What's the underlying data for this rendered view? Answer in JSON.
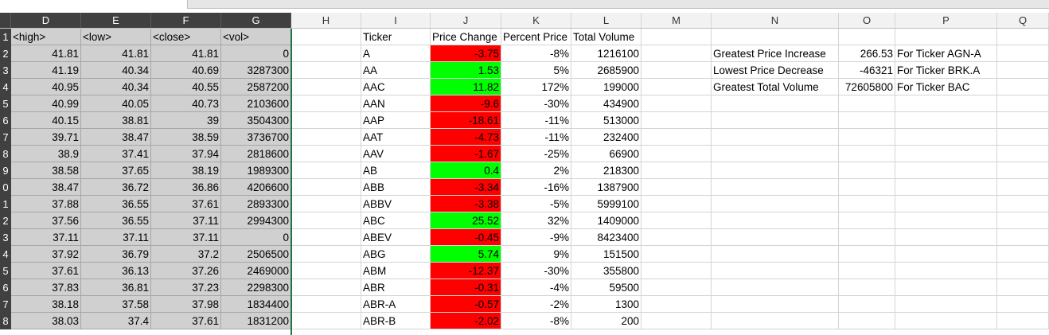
{
  "columns": [
    "D",
    "E",
    "F",
    "G",
    "H",
    "I",
    "J",
    "K",
    "L",
    "M",
    "N",
    "O",
    "P",
    "Q"
  ],
  "row_numbers": [
    "1",
    "2",
    "3",
    "4",
    "5",
    "6",
    "7",
    "8",
    "9",
    "0",
    "1",
    "2",
    "3",
    "4",
    "5",
    "6",
    "7",
    "8"
  ],
  "left_headers": [
    "<high>",
    "<low>",
    "<close>",
    "<vol>"
  ],
  "left_rows": [
    [
      "41.81",
      "41.81",
      "41.81",
      "0"
    ],
    [
      "41.19",
      "40.34",
      "40.69",
      "3287300"
    ],
    [
      "40.95",
      "40.34",
      "40.55",
      "2587200"
    ],
    [
      "40.99",
      "40.05",
      "40.73",
      "2103600"
    ],
    [
      "40.15",
      "38.81",
      "39",
      "3504300"
    ],
    [
      "39.71",
      "38.47",
      "38.59",
      "3736700"
    ],
    [
      "38.9",
      "37.41",
      "37.94",
      "2818600"
    ],
    [
      "38.58",
      "37.65",
      "38.19",
      "1989300"
    ],
    [
      "38.47",
      "36.72",
      "36.86",
      "4206600"
    ],
    [
      "37.88",
      "36.55",
      "37.61",
      "2893300"
    ],
    [
      "37.56",
      "36.55",
      "37.11",
      "2994300"
    ],
    [
      "37.11",
      "37.11",
      "37.11",
      "0"
    ],
    [
      "37.92",
      "36.79",
      "37.2",
      "2506500"
    ],
    [
      "37.61",
      "36.13",
      "37.26",
      "2469000"
    ],
    [
      "37.83",
      "36.81",
      "37.23",
      "2298300"
    ],
    [
      "38.18",
      "37.58",
      "37.98",
      "1834400"
    ],
    [
      "38.03",
      "37.4",
      "37.61",
      "1831200"
    ]
  ],
  "summary_headers": [
    "Ticker",
    "Price Change",
    "Percent Price",
    "Total Volume"
  ],
  "summary_rows": [
    {
      "ticker": "A",
      "change": "-3.75",
      "pct": "-8%",
      "vol": "1216100",
      "status": "neg"
    },
    {
      "ticker": "AA",
      "change": "1.53",
      "pct": "5%",
      "vol": "2685900",
      "status": "pos"
    },
    {
      "ticker": "AAC",
      "change": "11.82",
      "pct": "172%",
      "vol": "199000",
      "status": "pos"
    },
    {
      "ticker": "AAN",
      "change": "-9.6",
      "pct": "-30%",
      "vol": "434900",
      "status": "neg"
    },
    {
      "ticker": "AAP",
      "change": "-18.61",
      "pct": "-11%",
      "vol": "513000",
      "status": "neg"
    },
    {
      "ticker": "AAT",
      "change": "-4.73",
      "pct": "-11%",
      "vol": "232400",
      "status": "neg"
    },
    {
      "ticker": "AAV",
      "change": "-1.67",
      "pct": "-25%",
      "vol": "66900",
      "status": "neg"
    },
    {
      "ticker": "AB",
      "change": "0.4",
      "pct": "2%",
      "vol": "218300",
      "status": "pos"
    },
    {
      "ticker": "ABB",
      "change": "-3.34",
      "pct": "-16%",
      "vol": "1387900",
      "status": "neg"
    },
    {
      "ticker": "ABBV",
      "change": "-3.38",
      "pct": "-5%",
      "vol": "5999100",
      "status": "neg"
    },
    {
      "ticker": "ABC",
      "change": "25.52",
      "pct": "32%",
      "vol": "1409000",
      "status": "pos"
    },
    {
      "ticker": "ABEV",
      "change": "-0.45",
      "pct": "-9%",
      "vol": "8423400",
      "status": "neg"
    },
    {
      "ticker": "ABG",
      "change": "5.74",
      "pct": "9%",
      "vol": "151500",
      "status": "pos"
    },
    {
      "ticker": "ABM",
      "change": "-12.37",
      "pct": "-30%",
      "vol": "355800",
      "status": "neg"
    },
    {
      "ticker": "ABR",
      "change": "-0.31",
      "pct": "-4%",
      "vol": "59500",
      "status": "neg"
    },
    {
      "ticker": "ABR-A",
      "change": "-0.57",
      "pct": "-2%",
      "vol": "1300",
      "status": "neg"
    },
    {
      "ticker": "ABR-B",
      "change": "-2.02",
      "pct": "-8%",
      "vol": "200",
      "status": "neg"
    }
  ],
  "greatest": [
    {
      "label": "Greatest Price Increase",
      "value": "266.53",
      "ticker": "For Ticker AGN-A"
    },
    {
      "label": "Lowest Price Decrease",
      "value": "-46321",
      "ticker": "For Ticker BRK.A"
    },
    {
      "label": "Greatest Total Volume",
      "value": "72605800",
      "ticker": "For Ticker BAC"
    }
  ],
  "colors": {
    "positive": "#00ff00",
    "negative": "#ff0000",
    "selection": "#d0d0d0",
    "header_dark": "#404040"
  }
}
